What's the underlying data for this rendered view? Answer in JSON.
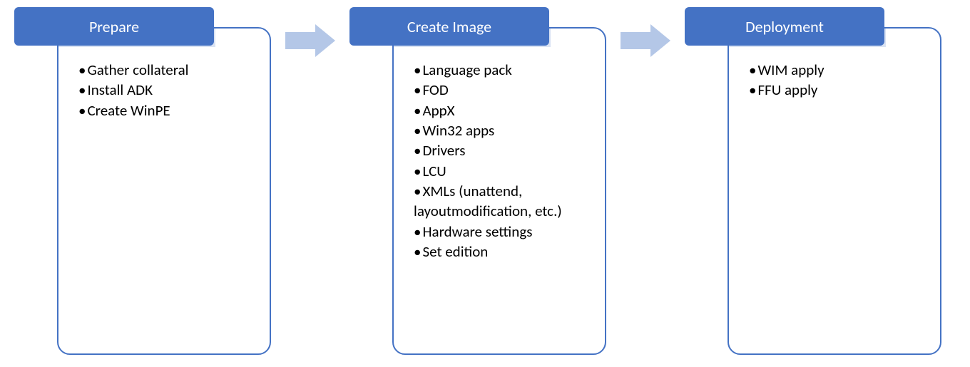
{
  "diagram": {
    "type": "flowchart",
    "background_color": "#ffffff",
    "header_color": "#4472c4",
    "header_text_color": "#ffffff",
    "body_border_color": "#4472c4",
    "corner_fill_color": "#dae3f3",
    "arrow_color": "#b4c7e7",
    "item_text_color": "#000000",
    "header_fontsize": 22,
    "item_fontsize": 21,
    "stages": [
      {
        "title": "Prepare",
        "items": [
          "Gather collateral",
          "Install ADK",
          "Create WinPE"
        ]
      },
      {
        "title": "Create Image",
        "items": [
          "Language pack",
          "FOD",
          "AppX",
          "Win32 apps",
          "Drivers",
          "LCU",
          "XMLs (unattend, layoutmodification, etc.)",
          "Hardware settings",
          "Set edition"
        ]
      },
      {
        "title": "Deployment",
        "items": [
          "WIM apply",
          "FFU apply"
        ]
      }
    ]
  }
}
